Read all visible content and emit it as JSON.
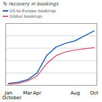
{
  "chart_data": {
    "type": "line",
    "title": "% recovery in bookings",
    "xlabel": "October",
    "categories": [
      "Jan",
      null,
      "Mar",
      "Apr",
      null,
      null,
      null,
      "Aug",
      null,
      "Oct"
    ],
    "series": [
      {
        "name": "US-to-Europe bookings",
        "color": "#1f5fa6",
        "values": [
          3,
          5,
          9,
          20,
          48,
          62,
          68,
          72,
          80,
          88
        ]
      },
      {
        "name": "Global bookings",
        "color": "#d4607a",
        "values": [
          2,
          3,
          7,
          15,
          35,
          48,
          54,
          57,
          59,
          61
        ]
      }
    ],
    "ylim": [
      0,
      100
    ],
    "yticks": [
      20,
      40,
      60,
      80,
      100
    ],
    "grid": true,
    "legend": "top-left",
    "tick_labels": "x"
  }
}
